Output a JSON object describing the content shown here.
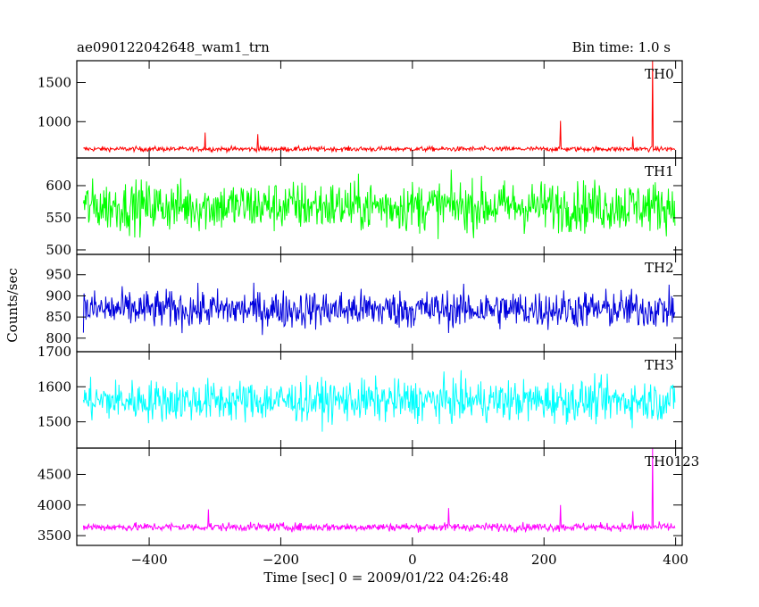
{
  "header": {
    "obsid": "ae090122042648_wam1_trn",
    "bin_time": "Bin time: 1.0 s"
  },
  "chart_data": {
    "type": "line",
    "ylabel": "Counts/sec",
    "xlabel": "Time [sec] 0 = 2009/01/22 04:26:48",
    "xlim": [
      -510,
      410
    ],
    "x_ticks": [
      -400,
      -200,
      0,
      200,
      400
    ],
    "x_tick_labels": [
      "−400",
      "−200",
      "0",
      "200",
      "400"
    ],
    "panels": [
      {
        "name": "TH0",
        "color": "#ff0000",
        "ylim": [
          535,
          1780
        ],
        "y_ticks": [
          1000,
          1500
        ],
        "y_tick_labels": [
          "1000",
          "1500"
        ],
        "baseline": 650,
        "noise": 22,
        "spikes": [
          {
            "x": -315,
            "y": 860
          },
          {
            "x": -235,
            "y": 840
          },
          {
            "x": 225,
            "y": 1010
          },
          {
            "x": 335,
            "y": 810
          },
          {
            "x": 365,
            "y": 1780
          }
        ]
      },
      {
        "name": "TH1",
        "color": "#00ff00",
        "ylim": [
          493,
          643
        ],
        "y_ticks": [
          500,
          550,
          600
        ],
        "y_tick_labels": [
          "500",
          "550",
          "600"
        ],
        "baseline": 568,
        "noise": 28,
        "spikes": []
      },
      {
        "name": "TH2",
        "color": "#0000dd",
        "ylim": [
          768,
          998
        ],
        "y_ticks": [
          800,
          850,
          900,
          950
        ],
        "y_tick_labels": [
          "800",
          "850",
          "900",
          "950"
        ],
        "baseline": 868,
        "noise": 32,
        "spikes": []
      },
      {
        "name": "TH3",
        "color": "#00ffff",
        "ylim": [
          1425,
          1700
        ],
        "y_ticks": [
          1500,
          1600,
          1700
        ],
        "y_tick_labels": [
          "1500",
          "1600",
          "1700"
        ],
        "baseline": 1560,
        "noise": 42,
        "spikes": []
      },
      {
        "name": "TH0123",
        "color": "#ff00ff",
        "ylim": [
          3340,
          4930
        ],
        "y_ticks": [
          3500,
          4000,
          4500
        ],
        "y_tick_labels": [
          "3500",
          "4000",
          "4500"
        ],
        "baseline": 3640,
        "noise": 48,
        "spikes": [
          {
            "x": -310,
            "y": 3930
          },
          {
            "x": 55,
            "y": 3950
          },
          {
            "x": 225,
            "y": 4000
          },
          {
            "x": 335,
            "y": 3900
          },
          {
            "x": 365,
            "y": 4930
          }
        ]
      }
    ]
  }
}
